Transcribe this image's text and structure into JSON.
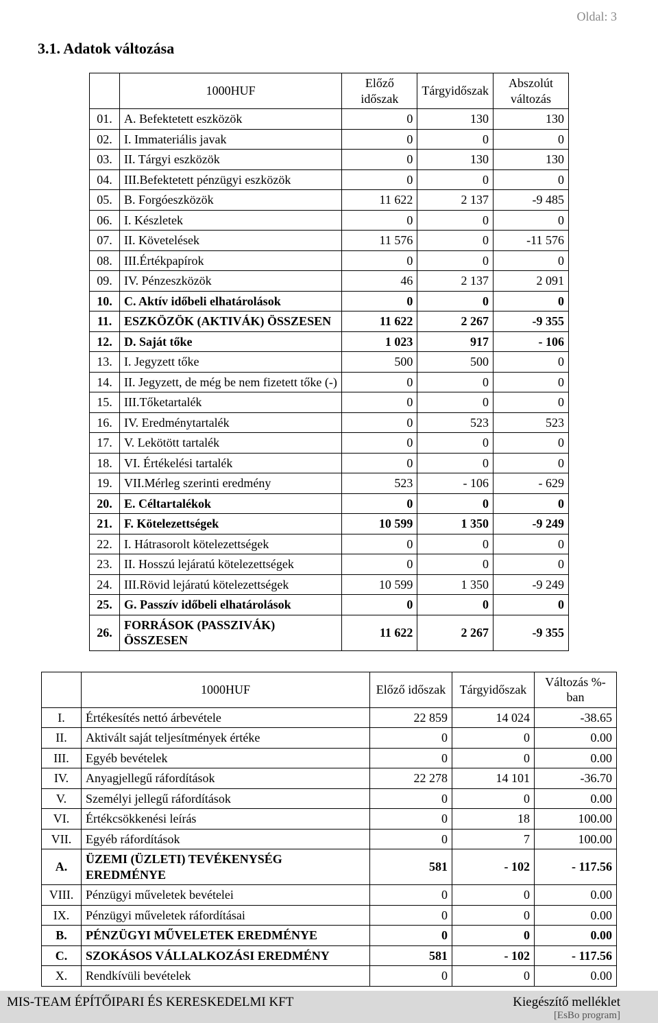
{
  "page_label": "Oldal:  3",
  "section_title": "3.1. Adatok változása",
  "table1": {
    "header": {
      "unit": "1000HUF",
      "prev": "Előző időszak",
      "curr": "Tárgyidőszak",
      "delta": "Abszolút változás"
    },
    "rows": [
      {
        "n": "01.",
        "c": "A. Befektetett eszközök",
        "v": [
          "0",
          "130",
          "130"
        ]
      },
      {
        "n": "02.",
        "c": "I. Immateriális javak",
        "v": [
          "0",
          "0",
          "0"
        ]
      },
      {
        "n": "03.",
        "c": "II. Tárgyi eszközök",
        "v": [
          "0",
          "130",
          "130"
        ]
      },
      {
        "n": "04.",
        "c": "III.Befektetett pénzügyi eszközök",
        "v": [
          "0",
          "0",
          "0"
        ]
      },
      {
        "n": "05.",
        "c": "B. Forgóeszközök",
        "v": [
          "11 622",
          "2 137",
          "-9 485"
        ]
      },
      {
        "n": "06.",
        "c": "I. Készletek",
        "v": [
          "0",
          "0",
          "0"
        ]
      },
      {
        "n": "07.",
        "c": "II. Követelések",
        "v": [
          "11 576",
          "0",
          "-11 576"
        ]
      },
      {
        "n": "08.",
        "c": "III.Értékpapírok",
        "v": [
          "0",
          "0",
          "0"
        ]
      },
      {
        "n": "09.",
        "c": "IV. Pénzeszközök",
        "v": [
          "46",
          "2 137",
          "2 091"
        ]
      },
      {
        "n": "10.",
        "c": "C. Aktív időbeli elhatárolások",
        "v": [
          "0",
          "0",
          "0"
        ],
        "b": true
      },
      {
        "n": "11.",
        "c": "ESZKÖZÖK (AKTIVÁK) ÖSSZESEN",
        "v": [
          "11 622",
          "2 267",
          "-9 355"
        ],
        "b": true
      },
      {
        "n": "12.",
        "c": "D. Saját tőke",
        "v": [
          "1 023",
          "917",
          "- 106"
        ],
        "b": true
      },
      {
        "n": "13.",
        "c": "I. Jegyzett tőke",
        "v": [
          "500",
          "500",
          "0"
        ]
      },
      {
        "n": "14.",
        "c": "II. Jegyzett, de még be nem fizetett tőke (-)",
        "v": [
          "0",
          "0",
          "0"
        ]
      },
      {
        "n": "15.",
        "c": "III.Tőketartalék",
        "v": [
          "0",
          "0",
          "0"
        ]
      },
      {
        "n": "16.",
        "c": "IV. Eredménytartalék",
        "v": [
          "0",
          "523",
          "523"
        ]
      },
      {
        "n": "17.",
        "c": "V. Lekötött tartalék",
        "v": [
          "0",
          "0",
          "0"
        ]
      },
      {
        "n": "18.",
        "c": "VI. Értékelési tartalék",
        "v": [
          "0",
          "0",
          "0"
        ]
      },
      {
        "n": "19.",
        "c": "VII.Mérleg szerinti eredmény",
        "v": [
          "523",
          "- 106",
          "- 629"
        ]
      },
      {
        "n": "20.",
        "c": "E. Céltartalékok",
        "v": [
          "0",
          "0",
          "0"
        ],
        "b": true
      },
      {
        "n": "21.",
        "c": "F. Kötelezettségek",
        "v": [
          "10 599",
          "1 350",
          "-9 249"
        ],
        "b": true
      },
      {
        "n": "22.",
        "c": "I. Hátrasorolt kötelezettségek",
        "v": [
          "0",
          "0",
          "0"
        ]
      },
      {
        "n": "23.",
        "c": "II. Hosszú lejáratú kötelezettségek",
        "v": [
          "0",
          "0",
          "0"
        ]
      },
      {
        "n": "24.",
        "c": "III.Rövid lejáratú kötelezettségek",
        "v": [
          "10 599",
          "1 350",
          "-9 249"
        ]
      },
      {
        "n": "25.",
        "c": "G. Passzív időbeli elhatárolások",
        "v": [
          "0",
          "0",
          "0"
        ],
        "b": true
      },
      {
        "n": "26.",
        "c": "FORRÁSOK (PASSZIVÁK) ÖSSZESEN",
        "v": [
          "11 622",
          "2 267",
          "-9 355"
        ],
        "b": true
      }
    ]
  },
  "table2": {
    "header": {
      "unit": "1000HUF",
      "prev": "Előző időszak",
      "curr": "Tárgyidőszak",
      "delta": "Változás %-ban"
    },
    "rows": [
      {
        "n": "I.",
        "c": "Értékesítés nettó árbevétele",
        "v": [
          "22 859",
          "14 024",
          "-38.65"
        ]
      },
      {
        "n": "II.",
        "c": "Aktivált saját teljesítmények értéke",
        "v": [
          "0",
          "0",
          "0.00"
        ]
      },
      {
        "n": "III.",
        "c": "Egyéb bevételek",
        "v": [
          "0",
          "0",
          "0.00"
        ]
      },
      {
        "n": "IV.",
        "c": "Anyagjellegű ráfordítások",
        "v": [
          "22 278",
          "14 101",
          "-36.70"
        ]
      },
      {
        "n": "V.",
        "c": "Személyi jellegű ráfordítások",
        "v": [
          "0",
          "0",
          "0.00"
        ]
      },
      {
        "n": "VI.",
        "c": "Értékcsökkenési leírás",
        "v": [
          "0",
          "18",
          "100.00"
        ]
      },
      {
        "n": "VII.",
        "c": "Egyéb ráfordítások",
        "v": [
          "0",
          "7",
          "100.00"
        ]
      },
      {
        "n": "A.",
        "c": "ÜZEMI (ÜZLETI) TEVÉKENYSÉG EREDMÉNYE",
        "v": [
          "581",
          "- 102",
          "- 117.56"
        ],
        "b": true
      },
      {
        "n": "VIII.",
        "c": "Pénzügyi műveletek bevételei",
        "v": [
          "0",
          "0",
          "0.00"
        ]
      },
      {
        "n": "IX.",
        "c": "Pénzügyi műveletek ráfordításai",
        "v": [
          "0",
          "0",
          "0.00"
        ]
      },
      {
        "n": "B.",
        "c": "PÉNZÜGYI MŰVELETEK EREDMÉNYE",
        "v": [
          "0",
          "0",
          "0.00"
        ],
        "b": true
      },
      {
        "n": "C.",
        "c": "SZOKÁSOS VÁLLALKOZÁSI EREDMÉNY",
        "v": [
          "581",
          "- 102",
          "- 117.56"
        ],
        "b": true
      },
      {
        "n": "X.",
        "c": "Rendkívüli bevételek",
        "v": [
          "0",
          "0",
          "0.00"
        ]
      }
    ]
  },
  "footer": {
    "left": "MIS-TEAM ÉPÍTŐIPARI ÉS KERESKEDELMI KFT",
    "right": "Kiegészítő melléklet",
    "sub": "[EsBo program]"
  }
}
